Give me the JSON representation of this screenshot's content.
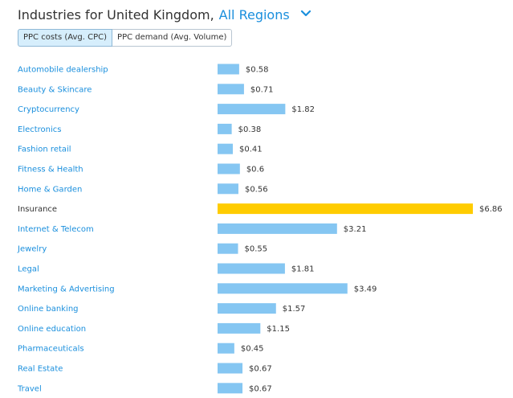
{
  "header": {
    "title": "Industries for United Kingdom,",
    "region_label": "All Regions",
    "region_chevron_icon": "chevron-down-icon"
  },
  "tabs": [
    {
      "label": "PPC costs (Avg. CPC)",
      "active": true
    },
    {
      "label": "PPC demand (Avg. Volume)",
      "active": false
    }
  ],
  "colors": {
    "link": "#1a8fdd",
    "bar": "#85c6f2",
    "highlight_bar": "#ffcc00",
    "text": "#333333"
  },
  "chart_data": {
    "type": "bar",
    "orientation": "horizontal",
    "title": "",
    "xlabel": "",
    "ylabel": "",
    "categories": [
      "Automobile dealership",
      "Beauty & Skincare",
      "Cryptocurrency",
      "Electronics",
      "Fashion retail",
      "Fitness & Health",
      "Home & Garden",
      "Insurance",
      "Internet & Telecom",
      "Jewelry",
      "Legal",
      "Marketing & Advertising",
      "Online banking",
      "Online education",
      "Pharmaceuticals",
      "Real Estate",
      "Travel"
    ],
    "values": [
      0.58,
      0.71,
      1.82,
      0.38,
      0.41,
      0.6,
      0.56,
      6.86,
      3.21,
      0.55,
      1.81,
      3.49,
      1.57,
      1.15,
      0.45,
      0.67,
      0.67
    ],
    "value_labels": [
      "$0.58",
      "$0.71",
      "$1.82",
      "$0.38",
      "$0.41",
      "$0.6",
      "$0.56",
      "$6.86",
      "$3.21",
      "$0.55",
      "$1.81",
      "$3.49",
      "$1.57",
      "$1.15",
      "$0.45",
      "$0.67",
      "$0.67"
    ],
    "highlighted_category": "Insurance",
    "xlim": [
      0,
      6.86
    ],
    "grid": false,
    "legend": "none"
  }
}
